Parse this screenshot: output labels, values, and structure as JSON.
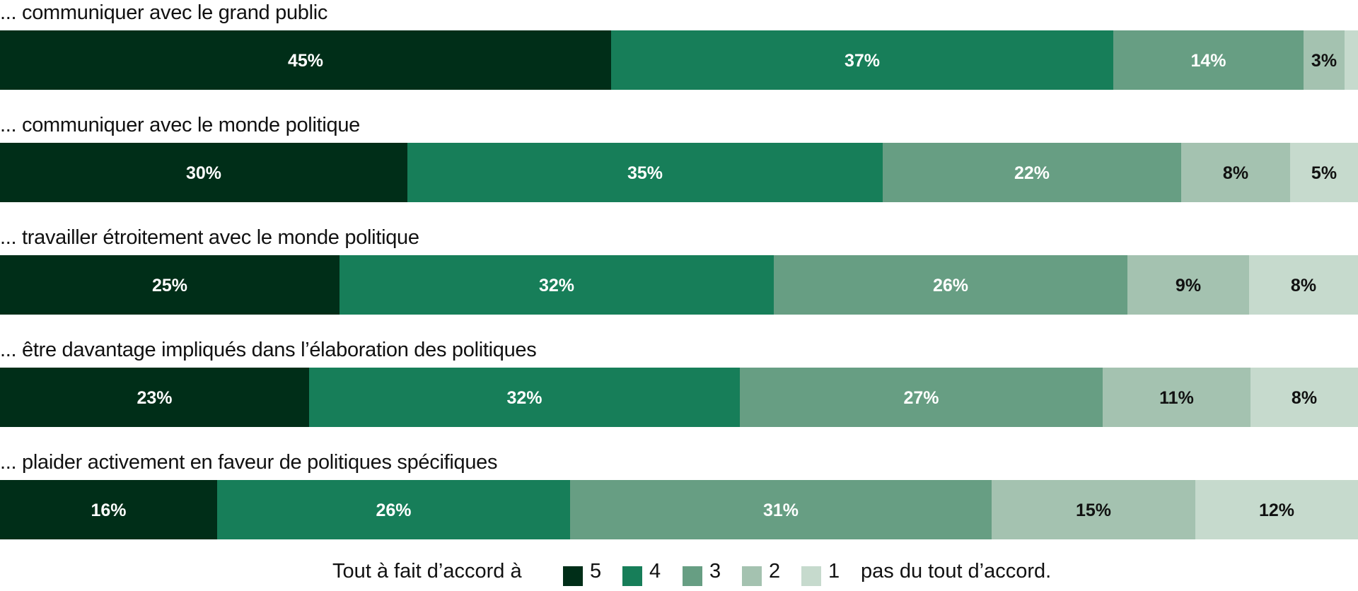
{
  "chart_data": {
    "type": "bar",
    "orientation": "horizontal",
    "stacked": true,
    "normalized": true,
    "categories": [
      "... communiquer avec le grand public",
      "... communiquer avec le monde politique",
      "... travailler étroitement avec le monde politique",
      "... être davantage impliqués dans l’élaboration des politiques",
      "... plaider activement en faveur de politiques spécifiques"
    ],
    "series": [
      {
        "name": "5",
        "values": [
          45,
          30,
          25,
          23,
          16
        ],
        "color": "#002e18"
      },
      {
        "name": "4",
        "values": [
          37,
          35,
          32,
          32,
          26
        ],
        "color": "#177e59"
      },
      {
        "name": "3",
        "values": [
          14,
          22,
          26,
          27,
          31
        ],
        "color": "#679e83"
      },
      {
        "name": "2",
        "values": [
          3,
          8,
          9,
          11,
          15
        ],
        "color": "#a4c2b0"
      },
      {
        "name": "1",
        "values": [
          1,
          5,
          8,
          8,
          12
        ],
        "color": "#c6dacd"
      }
    ],
    "labels": [
      [
        "45%",
        "37%",
        "14%",
        "3%",
        ""
      ],
      [
        "30%",
        "35%",
        "22%",
        "8%",
        "5%"
      ],
      [
        "25%",
        "32%",
        "26%",
        "9%",
        "8%"
      ],
      [
        "23%",
        "32%",
        "27%",
        "11%",
        "8%"
      ],
      [
        "16%",
        "26%",
        "31%",
        "15%",
        "12%"
      ]
    ],
    "label_colors": [
      "#ffffff",
      "#ffffff",
      "#ffffff",
      "#111111",
      "#111111"
    ],
    "xlim": [
      0,
      100
    ],
    "grid": false,
    "legend": {
      "placement": "bottom-center",
      "prefix": "Tout à fait d’accord à",
      "suffix": "pas du tout d’accord."
    }
  }
}
